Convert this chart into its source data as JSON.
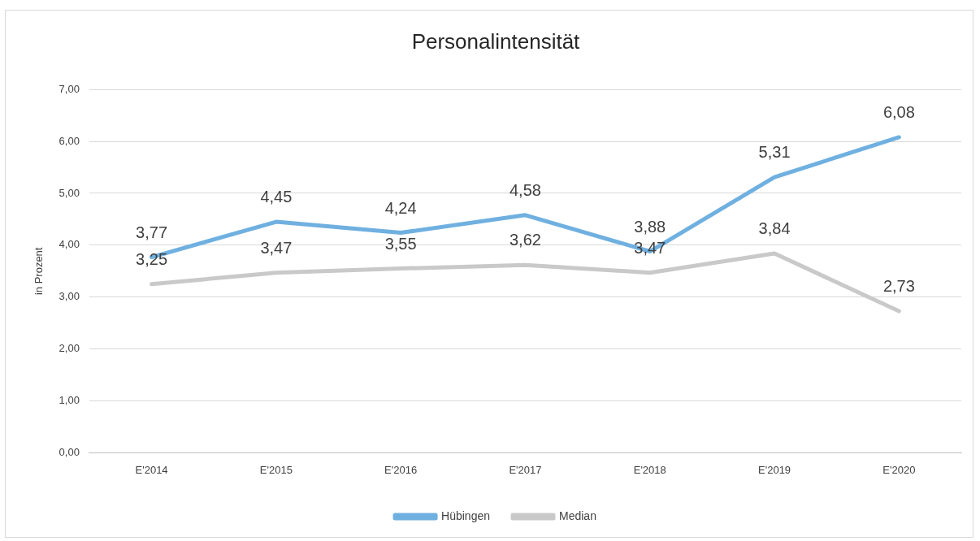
{
  "chart_data": {
    "type": "line",
    "title": "Personalintensität",
    "ylabel": "in Prozent",
    "categories": [
      "E'2014",
      "E'2015",
      "E'2016",
      "E'2017",
      "E'2018",
      "E'2019",
      "E'2020"
    ],
    "series": [
      {
        "name": "Hübingen",
        "color": "#6fb0e0",
        "values": [
          3.77,
          4.45,
          4.24,
          4.58,
          3.88,
          5.31,
          6.08
        ],
        "value_labels": [
          "3,77",
          "4,45",
          "4,24",
          "4,58",
          "3,88",
          "5,31",
          "6,08"
        ]
      },
      {
        "name": "Median",
        "color": "#c9c9c9",
        "values": [
          3.25,
          3.47,
          3.55,
          3.62,
          3.47,
          3.84,
          2.73
        ],
        "value_labels": [
          "3,25",
          "3,47",
          "3,55",
          "3,62",
          "3,47",
          "3,84",
          "2,73"
        ]
      }
    ],
    "ylim": [
      0,
      7
    ],
    "yticks": [
      {
        "value": 0,
        "label": "0,00"
      },
      {
        "value": 1,
        "label": "1,00"
      },
      {
        "value": 2,
        "label": "2,00"
      },
      {
        "value": 3,
        "label": "3,00"
      },
      {
        "value": 4,
        "label": "4,00"
      },
      {
        "value": 5,
        "label": "5,00"
      },
      {
        "value": 6,
        "label": "6,00"
      },
      {
        "value": 7,
        "label": "7,00"
      }
    ],
    "grid": "y",
    "legend": "bottom",
    "marker": "none",
    "line_style": "solid"
  }
}
